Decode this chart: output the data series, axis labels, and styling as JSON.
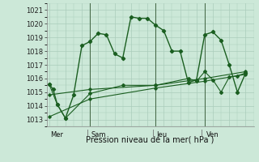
{
  "background_color": "#cce8d8",
  "grid_color": "#aaccbb",
  "line_color": "#1a5e20",
  "title": "Pression niveau de la mer( hPa )",
  "ylim": [
    1012.5,
    1021.5
  ],
  "yticks": [
    1013,
    1014,
    1015,
    1016,
    1017,
    1018,
    1019,
    1020,
    1021
  ],
  "day_labels": [
    "Mer",
    "Sam",
    "Jeu",
    "Ven"
  ],
  "day_positions": [
    0,
    5,
    13,
    19
  ],
  "series1_x": [
    0,
    0.5,
    1,
    2,
    3,
    4,
    5,
    6,
    7,
    8,
    9,
    10,
    11,
    12,
    13,
    14,
    15,
    16,
    17,
    18,
    19,
    20,
    21,
    22,
    23,
    24
  ],
  "series1_y": [
    1015.6,
    1015.2,
    1014.1,
    1013.1,
    1014.8,
    1018.4,
    1018.7,
    1019.3,
    1019.2,
    1017.8,
    1017.5,
    1020.5,
    1020.4,
    1020.4,
    1019.9,
    1019.5,
    1018.0,
    1018.0,
    1015.7,
    1015.9,
    1019.2,
    1019.4,
    1018.8,
    1017.0,
    1015.0,
    1016.4
  ],
  "series2_x": [
    0,
    1,
    2,
    5,
    9,
    13,
    17,
    18,
    19,
    20,
    21,
    22,
    23,
    24
  ],
  "series2_y": [
    1015.6,
    1014.1,
    1013.1,
    1014.9,
    1015.5,
    1015.5,
    1016.0,
    1015.8,
    1016.5,
    1015.9,
    1015.0,
    1016.1,
    1016.2,
    1016.4
  ],
  "series3_x": [
    0,
    5,
    13,
    19,
    24
  ],
  "series3_y": [
    1013.2,
    1014.5,
    1015.3,
    1015.8,
    1016.3
  ],
  "series4_x": [
    0,
    5,
    13,
    19,
    24
  ],
  "series4_y": [
    1014.8,
    1015.2,
    1015.5,
    1016.0,
    1016.5
  ],
  "xlim": [
    -0.3,
    25
  ]
}
